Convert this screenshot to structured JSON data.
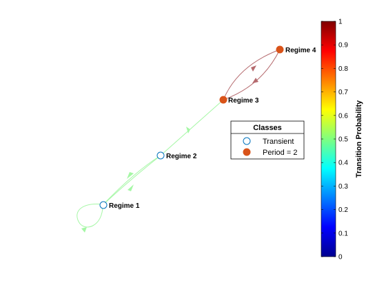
{
  "graph": {
    "nodes": [
      {
        "id": "r1",
        "label": "Regime 1",
        "class": "transient"
      },
      {
        "id": "r2",
        "label": "Regime 2",
        "class": "transient"
      },
      {
        "id": "r3",
        "label": "Regime 3",
        "class": "period"
      },
      {
        "id": "r4",
        "label": "Regime 4",
        "class": "period"
      }
    ],
    "edges": [
      {
        "from": "r1",
        "to": "r1",
        "probability": 0.35
      },
      {
        "from": "r1",
        "to": "r2",
        "probability": 0.35
      },
      {
        "from": "r2",
        "to": "r1",
        "probability": 0.35
      },
      {
        "from": "r2",
        "to": "r3",
        "probability": 0.3
      },
      {
        "from": "r3",
        "to": "r4",
        "probability": 1.0
      },
      {
        "from": "r4",
        "to": "r3",
        "probability": 1.0
      }
    ]
  },
  "legend": {
    "title": "Classes",
    "items": [
      {
        "label": "Transient",
        "marker": "open-circle",
        "color": "#0072BD"
      },
      {
        "label": "Period = 2",
        "marker": "filled-circle",
        "color": "#D95319"
      }
    ]
  },
  "colorbar": {
    "label": "Transition Probability",
    "colormap": "jet",
    "ticks": [
      "0",
      "0.1",
      "0.2",
      "0.3",
      "0.4",
      "0.5",
      "0.6",
      "0.7",
      "0.8",
      "0.9",
      "1"
    ]
  },
  "colors": {
    "transient_edge": "#0072BD",
    "period_fill": "#D95319"
  }
}
